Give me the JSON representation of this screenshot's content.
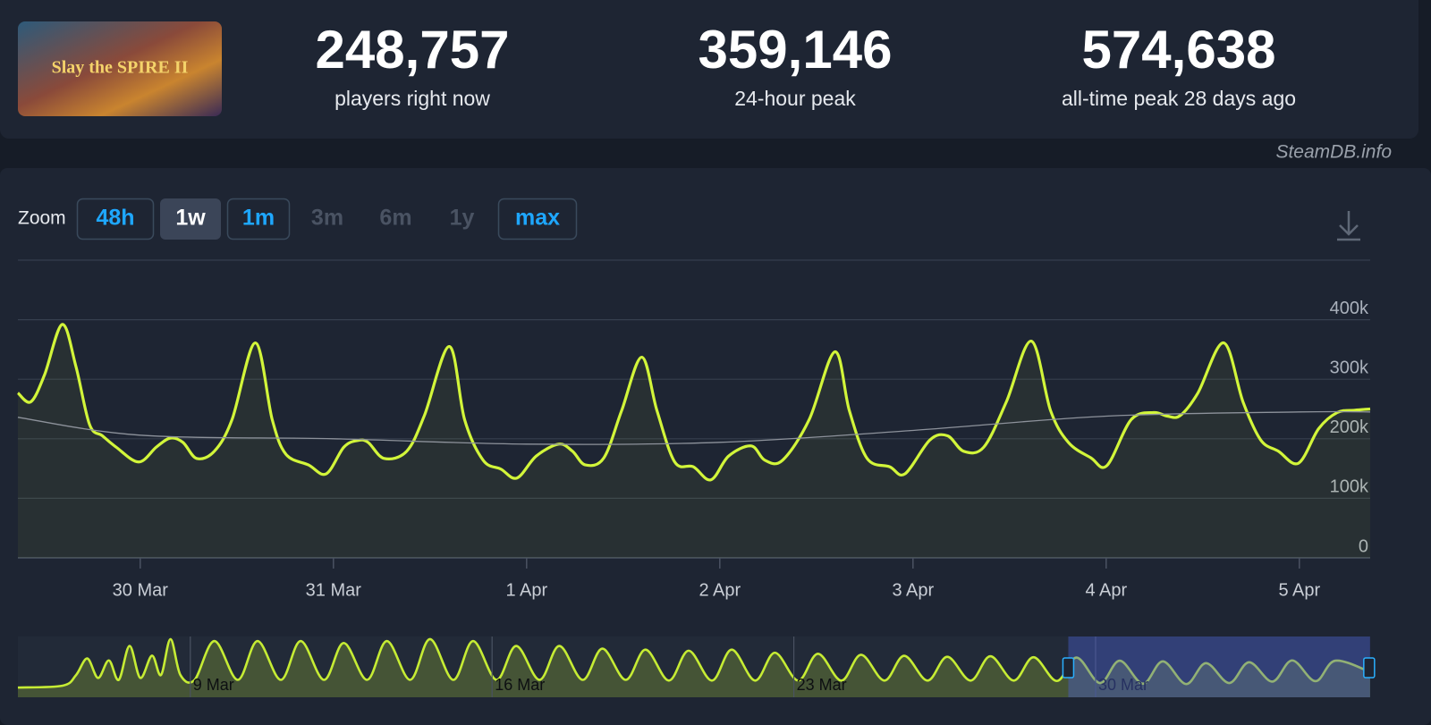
{
  "header": {
    "logo": "Slay the SPIRE II",
    "stats": [
      {
        "value": "248,757",
        "label": "players right now"
      },
      {
        "value": "359,146",
        "label": "24-hour peak"
      },
      {
        "value": "574,638",
        "label": "all-time peak 28 days ago"
      }
    ]
  },
  "source": "SteamDB.info",
  "zoom": {
    "label": "Zoom",
    "buttons": [
      {
        "label": "48h",
        "state": "enabled"
      },
      {
        "label": "1w",
        "state": "active"
      },
      {
        "label": "1m",
        "state": "enabled"
      },
      {
        "label": "3m",
        "state": "disabled"
      },
      {
        "label": "6m",
        "state": "disabled"
      },
      {
        "label": "1y",
        "state": "disabled"
      },
      {
        "label": "max",
        "state": "enabled"
      }
    ]
  },
  "chart_data": [
    {
      "type": "line",
      "xlim": [
        -15.2,
        152.8
      ],
      "xticks": [
        {
          "value": 0,
          "label": "30 Mar"
        },
        {
          "value": 24,
          "label": "31 Mar"
        },
        {
          "value": 48,
          "label": "1 Apr"
        },
        {
          "value": 72,
          "label": "2 Apr"
        },
        {
          "value": 96,
          "label": "3 Apr"
        },
        {
          "value": 120,
          "label": "4 Apr"
        },
        {
          "value": 144,
          "label": "5 Apr"
        }
      ],
      "ylim": [
        0,
        500000
      ],
      "yticks": [
        {
          "value": 0,
          "label": "0"
        },
        {
          "value": 100000,
          "label": "100k"
        },
        {
          "value": 200000,
          "label": "200k"
        },
        {
          "value": 300000,
          "label": "300k"
        },
        {
          "value": 400000,
          "label": "400k"
        }
      ],
      "grid": true,
      "series": [
        {
          "color": "#d2f53a",
          "fill": true,
          "x": [
            -15.2,
            -13.6,
            -11.9,
            -9.7,
            -8,
            -6.3,
            -4.7,
            -3,
            -0.2,
            2,
            3.7,
            5.3,
            7,
            9.2,
            11.4,
            14.3,
            16.4,
            18.1,
            20.9,
            23.1,
            25.3,
            27,
            28.3,
            30.3,
            33.1,
            35.3,
            38.4,
            40.3,
            42.6,
            44.8,
            46.8,
            49.2,
            52,
            53.7,
            55.3,
            57.6,
            59.8,
            62.3,
            64.2,
            66.4,
            68.7,
            70.9,
            73.1,
            75.9,
            77.6,
            79.8,
            83.1,
            86.3,
            88.1,
            90.3,
            93.1,
            95,
            98.1,
            100.3,
            102.3,
            104.8,
            107.6,
            110.7,
            113.1,
            115.3,
            118.1,
            120.1,
            123.1,
            125.9,
            127.6,
            129.2,
            131.4,
            134.6,
            137,
            139.2,
            141.4,
            143.9,
            146.4,
            148.7,
            150.9,
            152.8
          ],
          "values": [
            277000,
            262000,
            307000,
            392000,
            322000,
            224000,
            205000,
            186000,
            161000,
            186000,
            201000,
            194000,
            167000,
            179000,
            232000,
            361000,
            232000,
            174000,
            156000,
            141000,
            186000,
            197000,
            194000,
            167000,
            179000,
            239000,
            355000,
            232000,
            164000,
            149000,
            134000,
            171000,
            191000,
            179000,
            156000,
            168000,
            247000,
            337000,
            247000,
            161000,
            153000,
            131000,
            171000,
            188000,
            164000,
            164000,
            232000,
            346000,
            247000,
            167000,
            153000,
            141000,
            198000,
            205000,
            179000,
            186000,
            262000,
            364000,
            247000,
            194000,
            168000,
            155000,
            232000,
            244000,
            238000,
            239000,
            277000,
            361000,
            262000,
            198000,
            179000,
            159000,
            217000,
            244000,
            248000,
            250000
          ]
        },
        {
          "color": "#8d929b",
          "fill": false,
          "x": [
            -15.2,
            0,
            24,
            48,
            72,
            96,
            120,
            144,
            152.8
          ],
          "values": [
            236000,
            206000,
            200000,
            191000,
            194000,
            214000,
            238000,
            245000,
            245000
          ]
        }
      ]
    },
    {
      "type": "line",
      "xlim": [
        -4,
        27.37
      ],
      "xticks": [
        {
          "value": 0,
          "label": "9 Mar"
        },
        {
          "value": 7,
          "label": "16 Mar"
        },
        {
          "value": 14,
          "label": "23 Mar"
        },
        {
          "value": 21,
          "label": "30 Mar"
        }
      ],
      "ylim": [
        0,
        600000
      ],
      "series": [
        {
          "color": "#c6ec34",
          "fill": true,
          "x": [
            -4,
            -2.96,
            -2.65,
            -2.39,
            -2.14,
            -1.89,
            -1.66,
            -1.41,
            -1.16,
            -0.89,
            -0.68,
            -0.46,
            -0.23,
            0.1,
            0.56,
            1.1,
            1.56,
            2.1,
            2.56,
            3.1,
            3.56,
            4.1,
            4.56,
            5.1,
            5.56,
            6.1,
            6.56,
            7.1,
            7.56,
            8.1,
            8.56,
            9.1,
            9.56,
            10.1,
            10.56,
            11.1,
            11.56,
            12.1,
            12.56,
            13.1,
            13.56,
            14.1,
            14.56,
            15.1,
            15.56,
            16.1,
            16.56,
            17.1,
            17.56,
            18.1,
            18.56,
            19.1,
            19.56,
            20.1,
            20.56,
            21.1,
            21.56,
            22.1,
            22.56,
            23.1,
            23.56,
            24.1,
            24.56,
            25.1,
            25.56,
            26.1,
            26.56,
            27.37
          ],
          "values": [
            96000,
            115000,
            220000,
            383000,
            191000,
            364000,
            172000,
            507000,
            191000,
            411000,
            220000,
            574000,
            220000,
            172000,
            555000,
            172000,
            555000,
            172000,
            555000,
            172000,
            536000,
            172000,
            555000,
            172000,
            574000,
            172000,
            555000,
            172000,
            507000,
            172000,
            507000,
            172000,
            480000,
            172000,
            470000,
            165000,
            460000,
            165000,
            470000,
            165000,
            440000,
            165000,
            430000,
            165000,
            420000,
            165000,
            410000,
            165000,
            400000,
            165000,
            405000,
            165000,
            395000,
            161000,
            392000,
            141000,
            361000,
            134000,
            355000,
            131000,
            337000,
            141000,
            346000,
            155000,
            364000,
            159000,
            361000,
            250000
          ]
        }
      ]
    }
  ]
}
